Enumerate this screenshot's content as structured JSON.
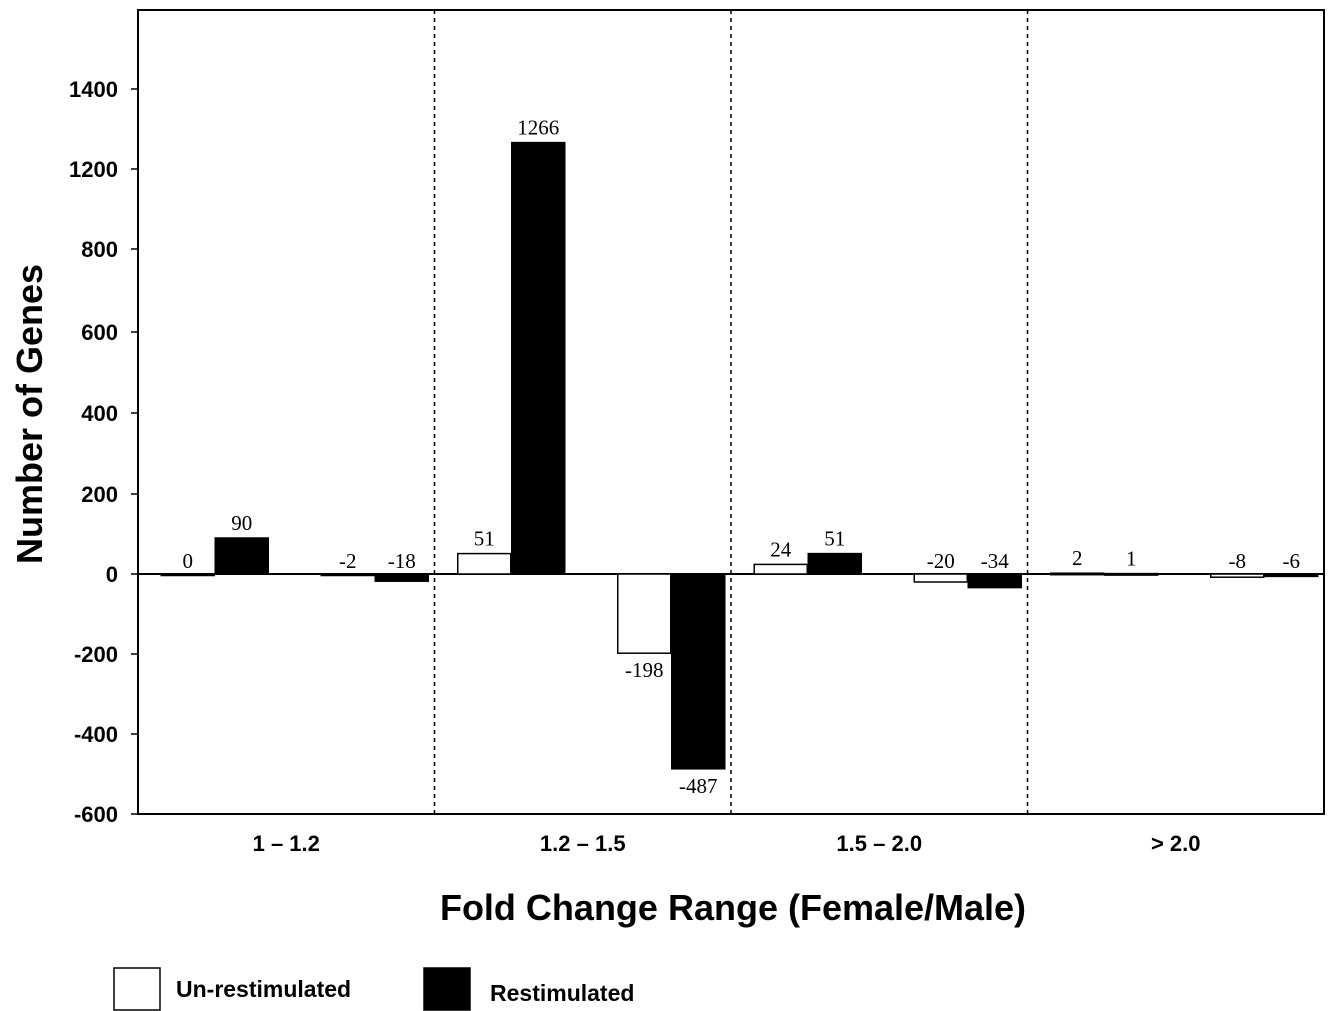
{
  "chart_data": {
    "type": "bar",
    "xlabel": "Fold Change Range (Female/Male)",
    "ylabel": "Number of Genes",
    "categories": [
      "1 – 1.2",
      "1.2 – 1.5",
      "1.5 – 2.0",
      "> 2.0"
    ],
    "y_tick_labels": [
      "1400",
      "1200",
      "800",
      "600",
      "400",
      "200",
      "0",
      "-200",
      "-400",
      "-600"
    ],
    "bar_order": [
      "Un-restimulated up",
      "Restimulated up",
      "Un-restimulated down",
      "Restimulated down"
    ],
    "series": [
      {
        "name": "Un-restimulated",
        "color": "#ffffff",
        "up": [
          0,
          51,
          24,
          2
        ],
        "down": [
          -2,
          -198,
          -20,
          -8
        ]
      },
      {
        "name": "Restimulated",
        "color": "#000000",
        "up": [
          90,
          1266,
          51,
          1
        ],
        "down": [
          -18,
          -487,
          -34,
          -6
        ]
      }
    ],
    "grid": false,
    "category_separators": "dotted",
    "legend_position": "bottom-left"
  }
}
